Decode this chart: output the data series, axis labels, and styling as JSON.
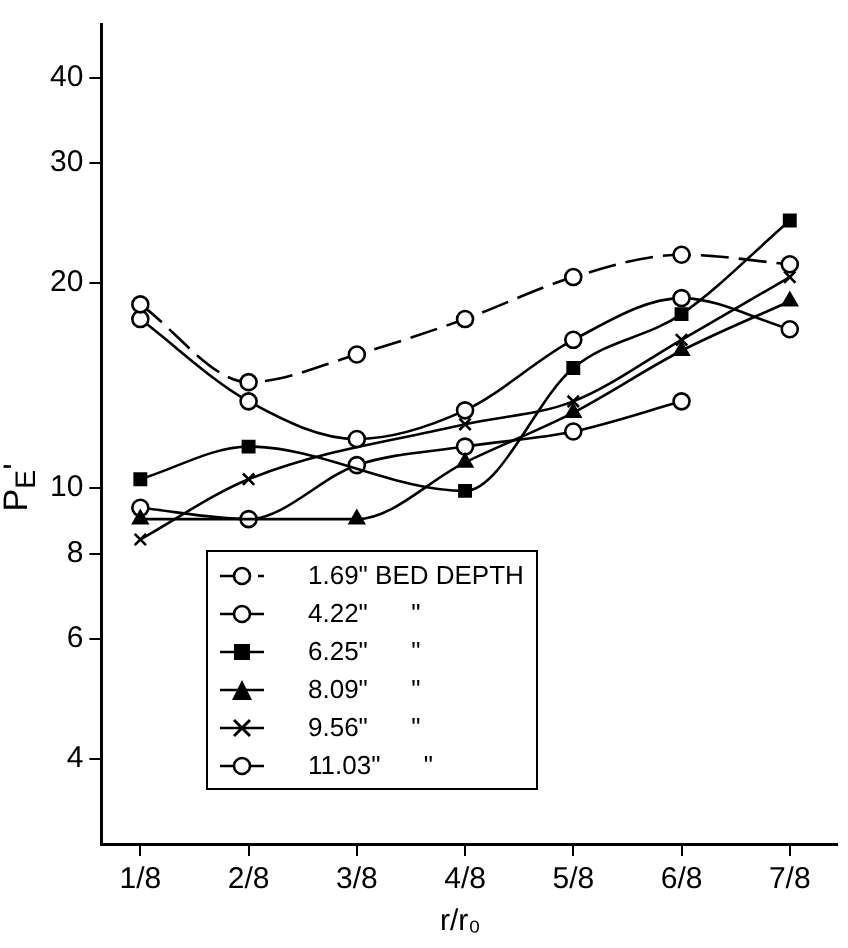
{
  "chart_data": {
    "type": "line",
    "xlabel": "r/r₀",
    "ylabel": "P$_{E}$'",
    "x": [
      0.125,
      0.25,
      0.375,
      0.5,
      0.625,
      0.75,
      0.875
    ],
    "xlim": [
      0.08,
      0.93
    ],
    "xticks": [
      {
        "value": 0.125,
        "label": "1/8"
      },
      {
        "value": 0.25,
        "label": "2/8"
      },
      {
        "value": 0.375,
        "label": "3/8"
      },
      {
        "value": 0.5,
        "label": "4/8"
      },
      {
        "value": 0.625,
        "label": "5/8"
      },
      {
        "value": 0.75,
        "label": "6/8"
      },
      {
        "value": 0.875,
        "label": "7/8"
      }
    ],
    "ylim": [
      3,
      48
    ],
    "yticks": [
      4,
      6,
      8,
      10,
      20,
      30,
      40
    ],
    "log": true,
    "grid": false,
    "legend": "bottom",
    "series": [
      {
        "name": "1.69\" BED DEPTH",
        "color": "#000000",
        "marker": "circle",
        "line_style": "dashed",
        "values": [
          18.6,
          14.3,
          15.7,
          17.7,
          20.4,
          22.0,
          21.3
        ]
      },
      {
        "name": "4.22\"      \"",
        "color": "#000000",
        "marker": "circle",
        "line_style": "solid",
        "values": [
          17.7,
          13.4,
          11.8,
          13.0,
          16.5,
          19.0,
          17.1
        ]
      },
      {
        "name": "6.25\"      \"",
        "color": "#000000",
        "marker": "square",
        "line_style": "solid",
        "values": [
          10.3,
          11.5,
          null,
          9.9,
          15.0,
          18.0,
          24.7
        ]
      },
      {
        "name": "8.09\"      \"",
        "color": "#000000",
        "marker": "triangle",
        "line_style": "solid",
        "values": [
          9.0,
          null,
          9.0,
          10.9,
          12.9,
          15.9,
          18.8
        ]
      },
      {
        "name": "9.56\"      \"",
        "color": "#000000",
        "marker": "cross",
        "line_style": "solid",
        "values": [
          8.4,
          10.3,
          null,
          12.4,
          13.4,
          16.5,
          20.4
        ]
      },
      {
        "name": "11.03\"      \"",
        "color": "#000000",
        "marker": "circle",
        "line_style": "solid",
        "values": [
          9.35,
          9.0,
          10.8,
          11.5,
          12.1,
          13.4,
          null
        ]
      }
    ]
  }
}
